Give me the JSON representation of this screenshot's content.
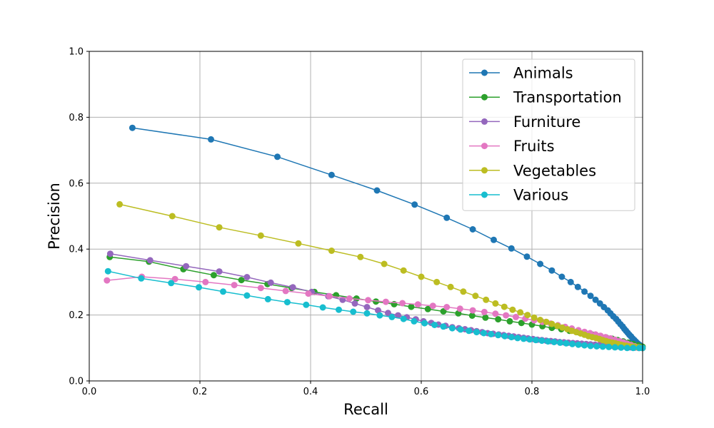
{
  "chart_data": {
    "type": "line",
    "title": "",
    "xlabel": "Recall",
    "ylabel": "Precision",
    "xlim": [
      0.0,
      1.0
    ],
    "ylim": [
      0.0,
      1.0
    ],
    "xticks": [
      "0.0",
      "0.2",
      "0.4",
      "0.6",
      "0.8",
      "1.0"
    ],
    "yticks": [
      "0.0",
      "0.2",
      "0.4",
      "0.6",
      "0.8",
      "1.0"
    ],
    "grid": true,
    "legend_position": "top-right",
    "series": [
      {
        "name": "Animals",
        "color": "#1f77b4",
        "x": [
          0.078,
          0.22,
          0.34,
          0.438,
          0.52,
          0.588,
          0.646,
          0.693,
          0.731,
          0.763,
          0.791,
          0.815,
          0.836,
          0.854,
          0.87,
          0.883,
          0.895,
          0.906,
          0.915,
          0.923,
          0.93,
          0.937,
          0.942,
          0.947,
          0.952,
          0.956,
          0.96,
          0.964,
          0.967,
          0.97,
          0.973,
          0.976,
          0.979,
          0.982,
          0.985,
          0.988,
          0.991,
          0.994,
          0.997,
          1.0
        ],
        "y": [
          0.768,
          0.733,
          0.68,
          0.625,
          0.578,
          0.535,
          0.495,
          0.46,
          0.428,
          0.402,
          0.377,
          0.355,
          0.335,
          0.316,
          0.3,
          0.285,
          0.271,
          0.258,
          0.246,
          0.235,
          0.224,
          0.214,
          0.205,
          0.196,
          0.188,
          0.18,
          0.172,
          0.165,
          0.158,
          0.152,
          0.146,
          0.14,
          0.135,
          0.129,
          0.124,
          0.119,
          0.114,
          0.11,
          0.105,
          0.1
        ]
      },
      {
        "name": "Transportation",
        "color": "#2ca02c",
        "x": [
          0.037,
          0.108,
          0.17,
          0.225,
          0.275,
          0.322,
          0.366,
          0.407,
          0.446,
          0.483,
          0.518,
          0.551,
          0.582,
          0.612,
          0.64,
          0.667,
          0.692,
          0.716,
          0.739,
          0.76,
          0.781,
          0.8,
          0.819,
          0.836,
          0.853,
          0.868,
          0.883,
          0.897,
          0.91,
          0.922,
          0.934,
          0.945,
          0.955,
          0.965,
          0.974,
          0.983,
          0.992,
          1.0
        ],
        "y": [
          0.376,
          0.362,
          0.339,
          0.321,
          0.306,
          0.294,
          0.282,
          0.27,
          0.26,
          0.25,
          0.241,
          0.233,
          0.225,
          0.218,
          0.211,
          0.205,
          0.198,
          0.192,
          0.187,
          0.181,
          0.176,
          0.171,
          0.166,
          0.161,
          0.157,
          0.152,
          0.148,
          0.144,
          0.14,
          0.136,
          0.132,
          0.128,
          0.124,
          0.12,
          0.116,
          0.112,
          0.108,
          0.104
        ]
      },
      {
        "name": "Furniture",
        "color": "#9467bd",
        "x": [
          0.038,
          0.11,
          0.175,
          0.235,
          0.285,
          0.328,
          0.368,
          0.402,
          0.432,
          0.458,
          0.48,
          0.502,
          0.522,
          0.54,
          0.558,
          0.574,
          0.59,
          0.604,
          0.618,
          0.631,
          0.644,
          0.656,
          0.668,
          0.679,
          0.69,
          0.7,
          0.71,
          0.72,
          0.73,
          0.74,
          0.749,
          0.758,
          0.767,
          0.776,
          0.785,
          0.793,
          0.802,
          0.81,
          0.818,
          0.826,
          0.834,
          0.842,
          0.85,
          0.858,
          0.866,
          0.874,
          0.882,
          0.89,
          0.898,
          0.906,
          0.914,
          0.922,
          0.93,
          0.938,
          0.946,
          0.954,
          0.962,
          0.97,
          0.978,
          0.986,
          0.993,
          1.0
        ],
        "y": [
          0.386,
          0.366,
          0.348,
          0.332,
          0.315,
          0.298,
          0.284,
          0.27,
          0.257,
          0.246,
          0.235,
          0.224,
          0.214,
          0.206,
          0.199,
          0.193,
          0.187,
          0.181,
          0.176,
          0.171,
          0.167,
          0.163,
          0.16,
          0.157,
          0.154,
          0.151,
          0.148,
          0.145,
          0.143,
          0.141,
          0.139,
          0.137,
          0.135,
          0.133,
          0.131,
          0.129,
          0.127,
          0.125,
          0.124,
          0.122,
          0.121,
          0.12,
          0.118,
          0.117,
          0.116,
          0.115,
          0.114,
          0.113,
          0.112,
          0.111,
          0.11,
          0.109,
          0.108,
          0.107,
          0.106,
          0.105,
          0.104,
          0.103,
          0.102,
          0.101,
          0.1,
          0.1
        ]
      },
      {
        "name": "Fruits",
        "color": "#e377c2",
        "x": [
          0.032,
          0.095,
          0.155,
          0.21,
          0.262,
          0.31,
          0.355,
          0.396,
          0.434,
          0.47,
          0.504,
          0.536,
          0.566,
          0.594,
          0.621,
          0.646,
          0.67,
          0.693,
          0.714,
          0.734,
          0.753,
          0.771,
          0.788,
          0.804,
          0.819,
          0.834,
          0.847,
          0.86,
          0.872,
          0.884,
          0.895,
          0.905,
          0.915,
          0.924,
          0.933,
          0.942,
          0.95,
          0.958,
          0.965,
          0.972,
          0.979,
          0.986,
          0.993,
          1.0
        ],
        "y": [
          0.305,
          0.316,
          0.309,
          0.3,
          0.291,
          0.282,
          0.273,
          0.265,
          0.257,
          0.25,
          0.245,
          0.24,
          0.236,
          0.232,
          0.228,
          0.224,
          0.219,
          0.214,
          0.209,
          0.204,
          0.199,
          0.194,
          0.189,
          0.184,
          0.179,
          0.174,
          0.169,
          0.164,
          0.159,
          0.154,
          0.149,
          0.145,
          0.141,
          0.137,
          0.133,
          0.129,
          0.125,
          0.121,
          0.117,
          0.113,
          0.109,
          0.105,
          0.102,
          0.1
        ]
      },
      {
        "name": "Vegetables",
        "color": "#bcbd22",
        "x": [
          0.055,
          0.15,
          0.235,
          0.31,
          0.378,
          0.438,
          0.49,
          0.533,
          0.568,
          0.6,
          0.628,
          0.653,
          0.676,
          0.698,
          0.717,
          0.734,
          0.75,
          0.765,
          0.779,
          0.792,
          0.804,
          0.815,
          0.826,
          0.836,
          0.846,
          0.855,
          0.864,
          0.872,
          0.88,
          0.888,
          0.895,
          0.902,
          0.909,
          0.916,
          0.922,
          0.928,
          0.934,
          0.94,
          0.946,
          0.951,
          0.956,
          0.961,
          0.966,
          0.971,
          0.976,
          0.981,
          0.986,
          0.991,
          0.996,
          1.0
        ],
        "y": [
          0.536,
          0.5,
          0.466,
          0.441,
          0.417,
          0.395,
          0.376,
          0.355,
          0.335,
          0.316,
          0.3,
          0.285,
          0.271,
          0.258,
          0.246,
          0.235,
          0.225,
          0.216,
          0.208,
          0.2,
          0.192,
          0.185,
          0.179,
          0.173,
          0.167,
          0.162,
          0.157,
          0.152,
          0.148,
          0.144,
          0.14,
          0.136,
          0.133,
          0.13,
          0.127,
          0.124,
          0.121,
          0.118,
          0.116,
          0.114,
          0.112,
          0.11,
          0.108,
          0.107,
          0.105,
          0.104,
          0.103,
          0.102,
          0.101,
          0.1
        ]
      },
      {
        "name": "Various",
        "color": "#17becf",
        "x": [
          0.034,
          0.094,
          0.148,
          0.198,
          0.242,
          0.285,
          0.323,
          0.358,
          0.392,
          0.422,
          0.451,
          0.477,
          0.502,
          0.525,
          0.547,
          0.568,
          0.587,
          0.606,
          0.624,
          0.64,
          0.656,
          0.671,
          0.686,
          0.7,
          0.713,
          0.726,
          0.739,
          0.751,
          0.763,
          0.774,
          0.785,
          0.796,
          0.807,
          0.818,
          0.829,
          0.84,
          0.851,
          0.862,
          0.873,
          0.884,
          0.895,
          0.906,
          0.917,
          0.928,
          0.939,
          0.95,
          0.961,
          0.972,
          0.983,
          0.994,
          1.0
        ],
        "y": [
          0.333,
          0.311,
          0.297,
          0.284,
          0.271,
          0.259,
          0.248,
          0.239,
          0.231,
          0.223,
          0.216,
          0.21,
          0.205,
          0.199,
          0.194,
          0.188,
          0.181,
          0.175,
          0.17,
          0.165,
          0.16,
          0.156,
          0.152,
          0.148,
          0.145,
          0.142,
          0.139,
          0.136,
          0.133,
          0.13,
          0.128,
          0.126,
          0.124,
          0.122,
          0.12,
          0.118,
          0.116,
          0.114,
          0.112,
          0.11,
          0.108,
          0.106,
          0.105,
          0.104,
          0.103,
          0.102,
          0.101,
          0.1,
          0.1,
          0.1,
          0.1
        ]
      }
    ]
  }
}
